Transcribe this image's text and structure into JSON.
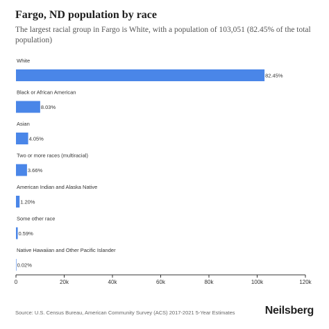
{
  "header": {
    "title": "Fargo, ND population by race",
    "subtitle": "The largest racial group in Fargo is White, with a population of 103,051 (82.45% of the total population)"
  },
  "footer": {
    "source": "Source: U.S. Census Bureau, American Community Survey (ACS) 2017-2021 5-Year Estimates",
    "brand": "Neilsberg"
  },
  "colors": {
    "bar": "#4a86e8",
    "axis": "#333333",
    "label": "#333333"
  },
  "chart_data": {
    "type": "bar",
    "orientation": "horizontal",
    "categories": [
      "White",
      "Black or African American",
      "Asian",
      "Two or more races (multiracial)",
      "American Indian and Alaska Native",
      "Some other race",
      "Native Hawaiian and Other Pacific Islander"
    ],
    "values": [
      103051,
      10037,
      5062,
      4575,
      1500,
      737,
      25
    ],
    "value_labels": [
      "82.45%",
      "8.03%",
      "4.05%",
      "3.66%",
      "1.20%",
      "0.59%",
      "0.02%"
    ],
    "xlim": [
      0,
      120000
    ],
    "xticks": [
      0,
      20000,
      40000,
      60000,
      80000,
      100000,
      120000
    ],
    "xtick_labels": [
      "0",
      "20k",
      "40k",
      "60k",
      "80k",
      "100k",
      "120k"
    ],
    "grid": false,
    "legend": "none"
  }
}
